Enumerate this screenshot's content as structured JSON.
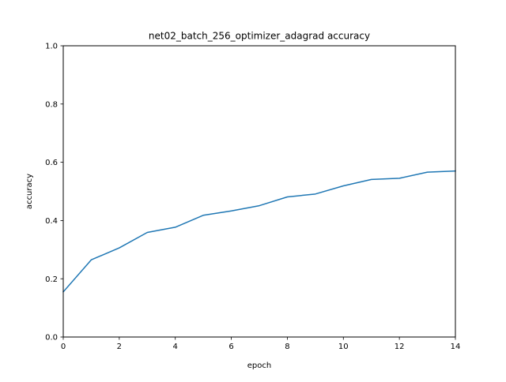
{
  "chart_data": {
    "type": "line",
    "title": "net02_batch_256_optimizer_adagrad accuracy",
    "xlabel": "epoch",
    "ylabel": "accuracy",
    "xlim": [
      0,
      14
    ],
    "ylim": [
      0.0,
      1.0
    ],
    "x_ticks": [
      "0",
      "2",
      "4",
      "6",
      "8",
      "10",
      "12",
      "14"
    ],
    "y_ticks": [
      "0.0",
      "0.2",
      "0.4",
      "0.6",
      "0.8",
      "1.0"
    ],
    "grid": false,
    "series": [
      {
        "color": "#1f77b4",
        "x": [
          0,
          1,
          2,
          3,
          4,
          5,
          6,
          7,
          8,
          9,
          10,
          11,
          12,
          13,
          14
        ],
        "values": [
          0.155,
          0.265,
          0.306,
          0.359,
          0.377,
          0.418,
          0.433,
          0.451,
          0.481,
          0.491,
          0.519,
          0.541,
          0.545,
          0.566,
          0.57
        ]
      }
    ]
  }
}
